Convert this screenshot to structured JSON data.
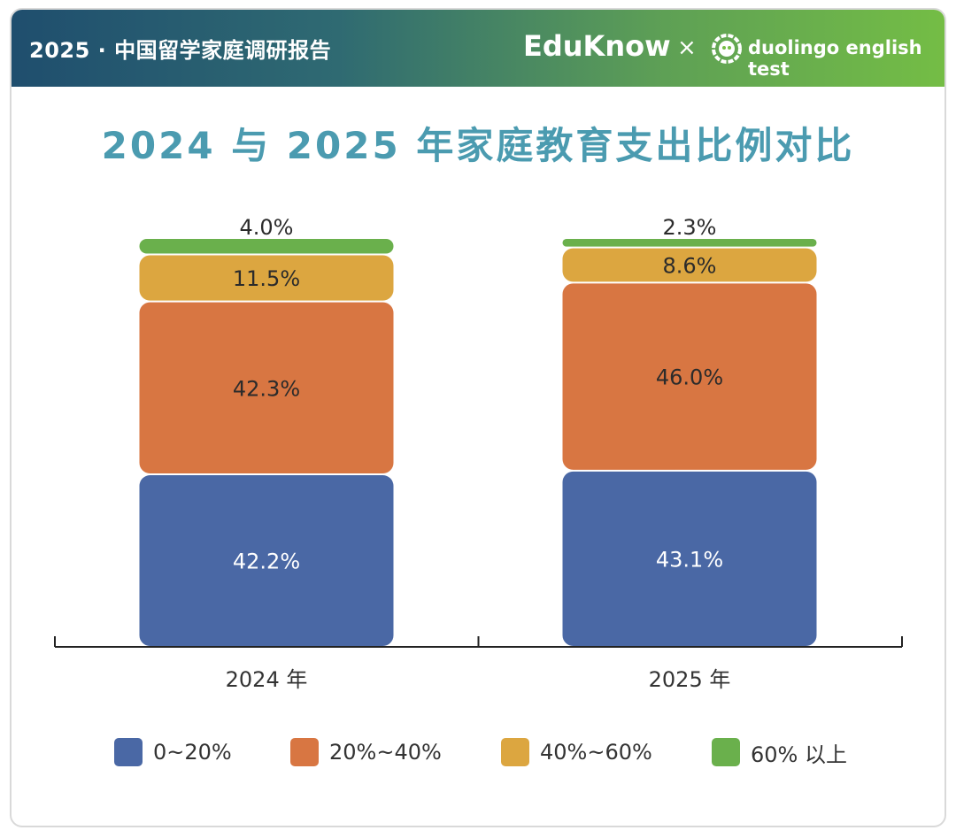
{
  "header": {
    "title": "2025 · 中国留学家庭调研报告",
    "brand_left": "EduKnow",
    "brand_sep": "×",
    "brand_right": "duolingo english test",
    "brand_right_icon": "duolingo-owl-icon"
  },
  "colors": {
    "series": [
      "#4a68a5",
      "#d87642",
      "#dca640",
      "#6ab04c"
    ],
    "title": "#4b9bb0"
  },
  "chart_data": {
    "type": "bar",
    "stacked": true,
    "title": "2024 与 2025 年家庭教育支出比例对比",
    "categories": [
      "2024 年",
      "2025 年"
    ],
    "series": [
      {
        "name": "0~20%",
        "values": [
          42.2,
          43.1
        ]
      },
      {
        "name": "20%~40%",
        "values": [
          42.3,
          46.0
        ]
      },
      {
        "name": "40%~60%",
        "values": [
          11.5,
          8.6
        ]
      },
      {
        "name": "60% 以上",
        "values": [
          4.0,
          2.3
        ]
      }
    ],
    "value_labels": [
      [
        "42.2%",
        "43.1%"
      ],
      [
        "42.3%",
        "46.0%"
      ],
      [
        "11.5%",
        "8.6%"
      ],
      [
        "4.0%",
        "2.3%"
      ]
    ],
    "ylim": [
      0,
      100
    ],
    "xlabel": "",
    "ylabel": "",
    "legend": "bottom"
  }
}
